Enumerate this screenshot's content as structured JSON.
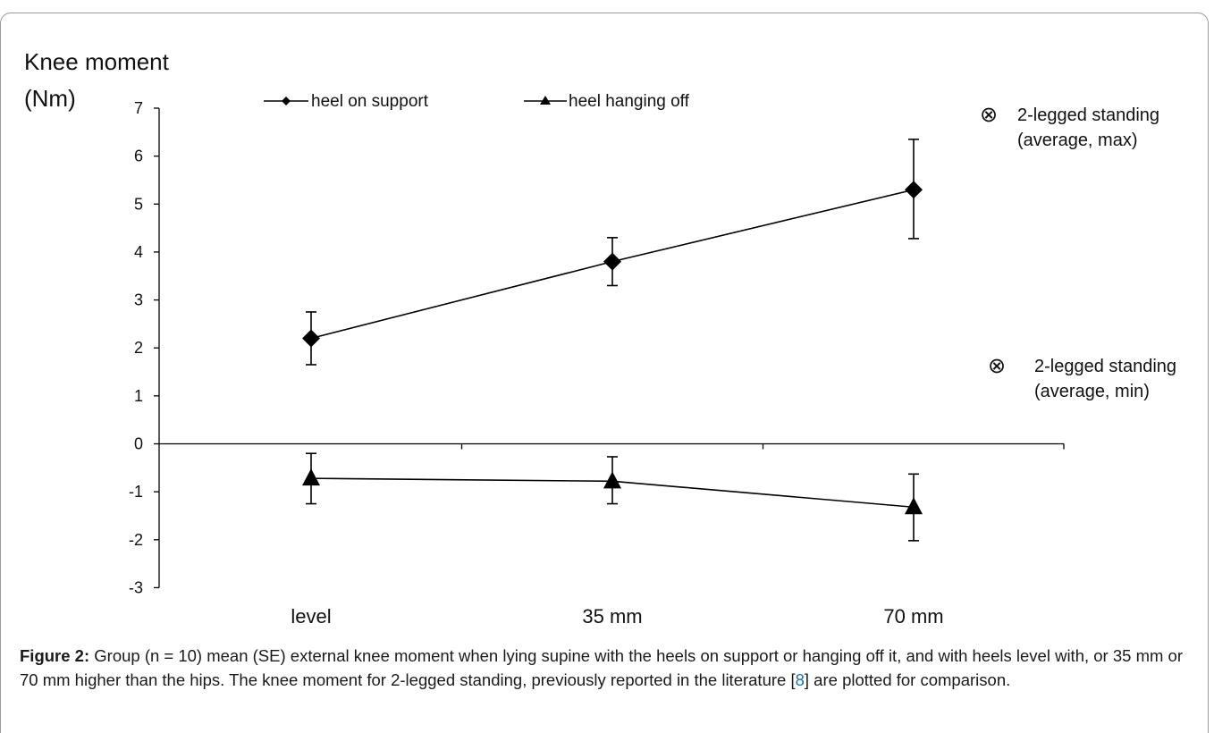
{
  "chart_data": {
    "type": "line",
    "ylabel_line1": "Knee moment",
    "ylabel_line2": "(Nm)",
    "categories": [
      "level",
      "35 mm",
      "70 mm"
    ],
    "ylim": [
      -3,
      7
    ],
    "yticks": [
      7,
      6,
      5,
      4,
      3,
      2,
      1,
      0,
      -1,
      -2,
      -3
    ],
    "series": [
      {
        "name": "heel on support",
        "marker": "diamond",
        "values": [
          2.2,
          3.8,
          5.3
        ],
        "error_upper": [
          2.75,
          4.3,
          6.35
        ],
        "error_lower": [
          1.65,
          3.3,
          4.28
        ]
      },
      {
        "name": "heel hanging off",
        "marker": "triangle",
        "values": [
          -0.72,
          -0.78,
          -1.32
        ],
        "error_upper": [
          -0.2,
          -0.27,
          -0.63
        ],
        "error_lower": [
          -1.25,
          -1.25,
          -2.02
        ]
      }
    ],
    "annotations": [
      {
        "symbol": "⊗",
        "line1": "2-legged standing",
        "line2": "(average, max)"
      },
      {
        "symbol": "⊗",
        "line1": "2-legged standing",
        "line2": "(average, min)"
      }
    ],
    "grid": false,
    "legend_placement": "top"
  },
  "caption": {
    "label": "Figure 2:",
    "text_before_ref": " Group (n = 10) mean (SE) external knee moment when lying supine with the heels on support or hanging off it, and with heels level with, or 35 mm or 70 mm higher than the hips. The knee moment for 2-legged standing, previously reported in the literature [",
    "ref": "8",
    "text_after_ref": "] are plotted for comparison."
  }
}
